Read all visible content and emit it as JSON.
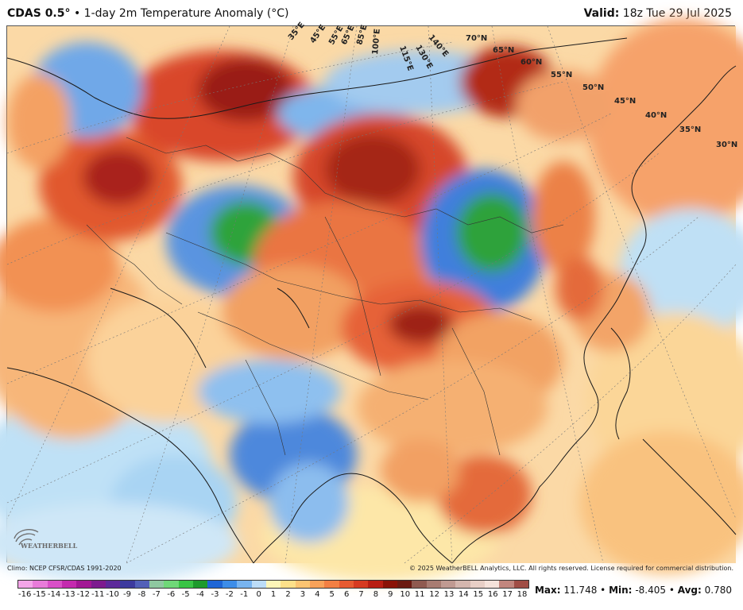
{
  "header": {
    "model": "CDAS 0.5°",
    "bullet": "•",
    "product": "1-day 2m Temperature Anomaly (°C)",
    "valid_label": "Valid:",
    "valid_time": "18z Tue 29 Jul 2025"
  },
  "map": {
    "lat_labels": [
      "70°N",
      "65°N",
      "60°N",
      "55°N",
      "50°N",
      "45°N",
      "40°N",
      "35°N",
      "30°N"
    ],
    "lon_labels": [
      "35°E",
      "45°E",
      "55°E",
      "65°E",
      "85°E",
      "100°E",
      "115°E",
      "130°E",
      "140°E"
    ],
    "logo_text": "WEATHERBELL"
  },
  "footer": {
    "climo": "Climo: NCEP CFSR/CDAS 1991-2020",
    "copyright": "© 2025 WeatherBELL Analytics, LLC. All rights reserved. License required for commercial distribution.",
    "stats": {
      "max_label": "Max:",
      "max": "11.748",
      "min_label": "Min:",
      "min": "-8.405",
      "avg_label": "Avg:",
      "avg": "0.780",
      "sep": "•"
    }
  },
  "colorbar": {
    "labels": [
      "-16",
      "-15",
      "-14",
      "-13",
      "-12",
      "-11",
      "-10",
      "-9",
      "-8",
      "-7",
      "-6",
      "-5",
      "-4",
      "-3",
      "-2",
      "-1",
      "0",
      "1",
      "2",
      "3",
      "4",
      "5",
      "6",
      "7",
      "8",
      "9",
      "10",
      "11",
      "12",
      "13",
      "14",
      "15",
      "16",
      "17",
      "18"
    ],
    "colors": [
      "#f3a5e8",
      "#e87bd9",
      "#d94fc7",
      "#c42aae",
      "#a21894",
      "#7d1b8e",
      "#5d2a9a",
      "#3d3a9e",
      "#5260b8",
      "#8fc8a0",
      "#6fd878",
      "#39c445",
      "#1d9a2c",
      "#1f66d6",
      "#3d8de8",
      "#78b4f0",
      "#bcdcf7",
      "#fdf5b8",
      "#fde08a",
      "#fbc472",
      "#f8a25a",
      "#f27f44",
      "#e65a32",
      "#d63a22",
      "#b81e14",
      "#8a1208",
      "#6b1a12",
      "#8f5a50",
      "#a87c72",
      "#c09a92",
      "#d4b6ae",
      "#e8cfc6",
      "#f5e2da",
      "#c2867e",
      "#a04d45"
    ]
  }
}
